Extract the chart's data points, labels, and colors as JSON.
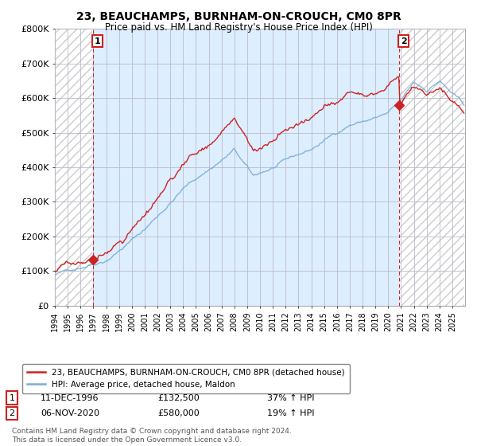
{
  "title": "23, BEAUCHAMPS, BURNHAM-ON-CROUCH, CM0 8PR",
  "subtitle": "Price paid vs. HM Land Registry's House Price Index (HPI)",
  "legend_line1": "23, BEAUCHAMPS, BURNHAM-ON-CROUCH, CM0 8PR (detached house)",
  "legend_line2": "HPI: Average price, detached house, Maldon",
  "annotation1_date": "11-DEC-1996",
  "annotation1_price": "£132,500",
  "annotation1_hpi": "37% ↑ HPI",
  "annotation2_date": "06-NOV-2020",
  "annotation2_price": "£580,000",
  "annotation2_hpi": "19% ↑ HPI",
  "footer": "Contains HM Land Registry data © Crown copyright and database right 2024.\nThis data is licensed under the Open Government Licence v3.0.",
  "red_color": "#cc2222",
  "blue_color": "#7aadd4",
  "bg_blue": "#ddeeff",
  "hatch_color": "#cccccc",
  "annotation_box_color": "#cc2222",
  "ylim": [
    0,
    800000
  ],
  "yticks": [
    0,
    100000,
    200000,
    300000,
    400000,
    500000,
    600000,
    700000,
    800000
  ],
  "ytick_labels": [
    "£0",
    "£100K",
    "£200K",
    "£300K",
    "£400K",
    "£500K",
    "£600K",
    "£700K",
    "£800K"
  ],
  "sale1_year_val": 1996.958,
  "sale1_price": 132500,
  "sale2_year_val": 2020.875,
  "sale2_price": 580000,
  "hpi_seed": 42,
  "red_seed": 17
}
